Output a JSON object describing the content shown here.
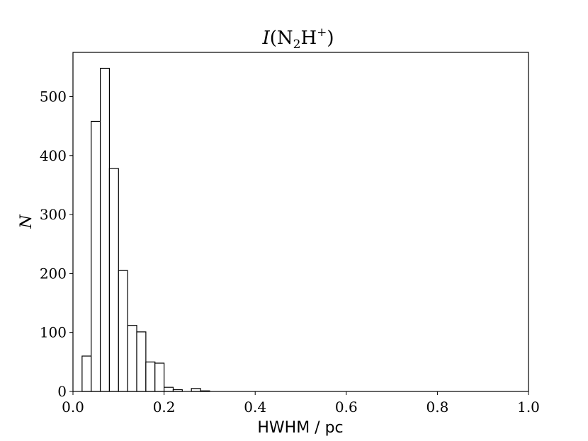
{
  "chart_data": {
    "type": "bar",
    "title": {
      "italic": "I",
      "open": "(N",
      "sub": "2",
      "mid": "H",
      "sup": "+",
      "close": ")"
    },
    "xlabel": "HWHM / pc",
    "ylabel": "N",
    "xlim": [
      0.0,
      1.0
    ],
    "ylim": [
      0,
      575
    ],
    "xticks": [
      0.0,
      0.2,
      0.4,
      0.6,
      0.8,
      1.0
    ],
    "xtick_labels": [
      "0.0",
      "0.2",
      "0.4",
      "0.6",
      "0.8",
      "1.0"
    ],
    "yticks": [
      0,
      100,
      200,
      300,
      400,
      500
    ],
    "ytick_labels": [
      "0",
      "100",
      "200",
      "300",
      "400",
      "500"
    ],
    "bin_width": 0.02,
    "bin_starts": [
      0.02,
      0.04,
      0.06,
      0.08,
      0.1,
      0.12,
      0.14,
      0.16,
      0.18,
      0.2,
      0.22,
      0.24,
      0.26,
      0.28
    ],
    "counts": [
      60,
      458,
      548,
      378,
      205,
      112,
      101,
      50,
      48,
      7,
      3,
      0,
      5,
      1
    ],
    "grid": false,
    "colors": {
      "bar_fill": "#ffffff",
      "bar_edge": "#000000",
      "axis": "#000000"
    }
  }
}
